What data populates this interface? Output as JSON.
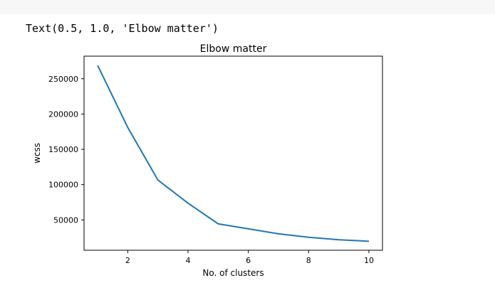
{
  "cell_output": {
    "text": "Text(0.5, 1.0, 'Elbow matter')"
  },
  "chart_data": {
    "type": "line",
    "title": "Elbow matter",
    "xlabel": "No. of clusters",
    "ylabel": "wcss",
    "x": [
      1,
      2,
      3,
      4,
      5,
      6,
      7,
      8,
      9,
      10
    ],
    "series": [
      {
        "values": [
          269000,
          181000,
          106500,
          73700,
          44400,
          37300,
          30300,
          25400,
          21900,
          19700
        ],
        "color": "#1f77b4"
      }
    ],
    "xlim": [
      0.55,
      10.45
    ],
    "ylim": [
      7000,
      282000
    ],
    "xticks": [
      2,
      4,
      6,
      8,
      10
    ],
    "yticks": [
      50000,
      100000,
      150000,
      200000,
      250000
    ],
    "grid": false
  }
}
